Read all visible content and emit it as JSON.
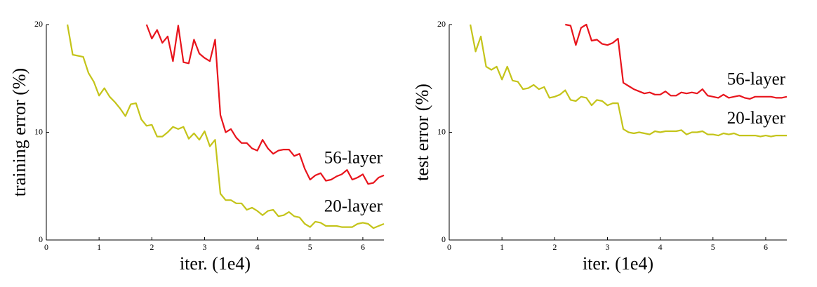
{
  "chart_data": [
    {
      "type": "line",
      "xlabel": "iter. (1e4)",
      "ylabel": "training error (%)",
      "xlim": [
        0,
        6.4
      ],
      "ylim": [
        0,
        20
      ],
      "xticks": [
        0,
        1,
        2,
        3,
        4,
        5,
        6
      ],
      "yticks": [
        0,
        10,
        20
      ],
      "x": [
        0.4,
        0.5,
        0.6,
        0.7,
        0.8,
        0.9,
        1.0,
        1.1,
        1.2,
        1.3,
        1.4,
        1.5,
        1.6,
        1.7,
        1.8,
        1.9,
        2.0,
        2.1,
        2.2,
        2.3,
        2.4,
        2.5,
        2.6,
        2.7,
        2.8,
        2.9,
        3.0,
        3.1,
        3.2,
        3.3,
        3.4,
        3.5,
        3.6,
        3.7,
        3.8,
        3.9,
        4.0,
        4.1,
        4.2,
        4.3,
        4.4,
        4.5,
        4.6,
        4.7,
        4.8,
        4.9,
        5.0,
        5.1,
        5.2,
        5.3,
        5.4,
        5.5,
        5.6,
        5.7,
        5.8,
        5.9,
        6.0,
        6.1,
        6.2,
        6.3,
        6.4
      ],
      "series": [
        {
          "name": "56-layer",
          "color": "#e8141c",
          "values": [
            null,
            null,
            null,
            null,
            null,
            null,
            null,
            null,
            null,
            null,
            null,
            null,
            null,
            null,
            null,
            20,
            18.7,
            19.5,
            18.3,
            18.9,
            16.6,
            19.9,
            16.5,
            16.4,
            18.6,
            17.3,
            16.9,
            16.6,
            18.6,
            11.6,
            10.0,
            10.3,
            9.5,
            9.0,
            9.0,
            8.5,
            8.3,
            9.3,
            8.5,
            8.0,
            8.3,
            8.4,
            8.4,
            7.8,
            8.0,
            6.6,
            5.6,
            6.0,
            6.2,
            5.5,
            5.6,
            5.9,
            6.1,
            6.5,
            5.6,
            5.8,
            6.1,
            5.2,
            5.3,
            5.8,
            6.0
          ]
        },
        {
          "name": "20-layer",
          "color": "#c4c41a",
          "values": [
            20,
            17.2,
            17.1,
            17.0,
            15.5,
            14.7,
            13.4,
            14.1,
            13.3,
            12.8,
            12.2,
            11.5,
            12.6,
            12.7,
            11.2,
            10.6,
            10.7,
            9.6,
            9.6,
            10.0,
            10.5,
            10.3,
            10.5,
            9.4,
            9.9,
            9.3,
            10.1,
            8.7,
            9.3,
            4.3,
            3.7,
            3.7,
            3.4,
            3.4,
            2.8,
            3.0,
            2.7,
            2.3,
            2.7,
            2.8,
            2.2,
            2.3,
            2.6,
            2.2,
            2.1,
            1.5,
            1.2,
            1.7,
            1.6,
            1.3,
            1.3,
            1.3,
            1.2,
            1.2,
            1.2,
            1.5,
            1.6,
            1.5,
            1.1,
            1.3,
            1.5
          ]
        }
      ]
    },
    {
      "type": "line",
      "xlabel": "iter. (1e4)",
      "ylabel": "test error (%)",
      "xlim": [
        0,
        6.4
      ],
      "ylim": [
        0,
        20
      ],
      "xticks": [
        0,
        1,
        2,
        3,
        4,
        5,
        6
      ],
      "yticks": [
        0,
        10,
        20
      ],
      "x": [
        0.4,
        0.5,
        0.6,
        0.7,
        0.8,
        0.9,
        1.0,
        1.1,
        1.2,
        1.3,
        1.4,
        1.5,
        1.6,
        1.7,
        1.8,
        1.9,
        2.0,
        2.1,
        2.2,
        2.3,
        2.4,
        2.5,
        2.6,
        2.7,
        2.8,
        2.9,
        3.0,
        3.1,
        3.2,
        3.3,
        3.4,
        3.5,
        3.6,
        3.7,
        3.8,
        3.9,
        4.0,
        4.1,
        4.2,
        4.3,
        4.4,
        4.5,
        4.6,
        4.7,
        4.8,
        4.9,
        5.0,
        5.1,
        5.2,
        5.3,
        5.4,
        5.5,
        5.6,
        5.7,
        5.8,
        5.9,
        6.0,
        6.1,
        6.2,
        6.3,
        6.4
      ],
      "series": [
        {
          "name": "56-layer",
          "color": "#e8141c",
          "values": [
            null,
            null,
            null,
            null,
            null,
            null,
            null,
            null,
            null,
            null,
            null,
            null,
            null,
            null,
            null,
            null,
            null,
            null,
            20,
            19.9,
            18.1,
            19.7,
            20.0,
            18.5,
            18.6,
            18.2,
            18.1,
            18.3,
            18.7,
            14.6,
            14.3,
            14.0,
            13.8,
            13.6,
            13.7,
            13.5,
            13.5,
            13.8,
            13.4,
            13.4,
            13.7,
            13.6,
            13.7,
            13.6,
            14.0,
            13.4,
            13.3,
            13.2,
            13.5,
            13.2,
            13.3,
            13.4,
            13.2,
            13.1,
            13.3,
            13.3,
            13.3,
            13.3,
            13.2,
            13.2,
            13.3
          ]
        },
        {
          "name": "20-layer",
          "color": "#c4c41a",
          "values": [
            20,
            17.5,
            18.9,
            16.1,
            15.8,
            16.1,
            14.9,
            16.1,
            14.8,
            14.7,
            14.0,
            14.1,
            14.4,
            14.0,
            14.2,
            13.2,
            13.3,
            13.5,
            13.9,
            13.0,
            12.9,
            13.3,
            13.2,
            12.5,
            13.0,
            12.9,
            12.5,
            12.7,
            12.7,
            10.3,
            10.0,
            9.9,
            10.0,
            9.9,
            9.8,
            10.1,
            10.0,
            10.1,
            10.1,
            10.1,
            10.2,
            9.8,
            10.0,
            10.0,
            10.1,
            9.8,
            9.8,
            9.7,
            9.9,
            9.8,
            9.9,
            9.7,
            9.7,
            9.7,
            9.7,
            9.6,
            9.7,
            9.6,
            9.7,
            9.7,
            9.7
          ]
        }
      ]
    }
  ]
}
